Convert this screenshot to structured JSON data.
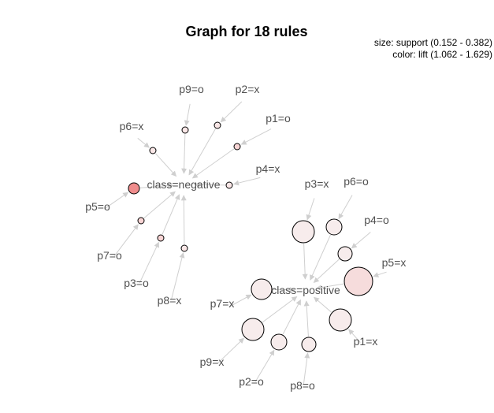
{
  "title": "Graph for 18 rules",
  "legend": {
    "size": "size: support (0.152 - 0.382)",
    "color": "color: lift (1.062 - 1.629)"
  },
  "consequents": [
    {
      "id": "neg",
      "label": "class=negative"
    },
    {
      "id": "pos",
      "label": "class=positive"
    }
  ],
  "rules": [
    {
      "antecedent": "p6=x",
      "consequent": "neg",
      "fill": "#fbe7e7"
    },
    {
      "antecedent": "p9=o",
      "consequent": "neg",
      "fill": "#fbe7e7"
    },
    {
      "antecedent": "p2=x",
      "consequent": "neg",
      "fill": "#fbe7e7"
    },
    {
      "antecedent": "p1=o",
      "consequent": "neg",
      "fill": "#f8d4d4"
    },
    {
      "antecedent": "p4=x",
      "consequent": "neg",
      "fill": "#fbe7e7"
    },
    {
      "antecedent": "p5=o",
      "consequent": "neg",
      "fill": "#ef8c8c"
    },
    {
      "antecedent": "p7=o",
      "consequent": "neg",
      "fill": "#f8d4d4"
    },
    {
      "antecedent": "p3=o",
      "consequent": "neg",
      "fill": "#f8d4d4"
    },
    {
      "antecedent": "p8=x",
      "consequent": "neg",
      "fill": "#fbe7e7"
    },
    {
      "antecedent": "p3=x",
      "consequent": "pos",
      "fill": "#f7ecec"
    },
    {
      "antecedent": "p6=o",
      "consequent": "pos",
      "fill": "#f7ecec"
    },
    {
      "antecedent": "p4=o",
      "consequent": "pos",
      "fill": "#f7ecec"
    },
    {
      "antecedent": "p5=x",
      "consequent": "pos",
      "fill": "#f6dcdc"
    },
    {
      "antecedent": "p7=x",
      "consequent": "pos",
      "fill": "#f7ecec"
    },
    {
      "antecedent": "p1=x",
      "consequent": "pos",
      "fill": "#f7ecec"
    },
    {
      "antecedent": "p9=x",
      "consequent": "pos",
      "fill": "#f7ecec"
    },
    {
      "antecedent": "p2=o",
      "consequent": "pos",
      "fill": "#f7ecec"
    },
    {
      "antecedent": "p8=o",
      "consequent": "pos",
      "fill": "#f7ecec"
    }
  ]
}
